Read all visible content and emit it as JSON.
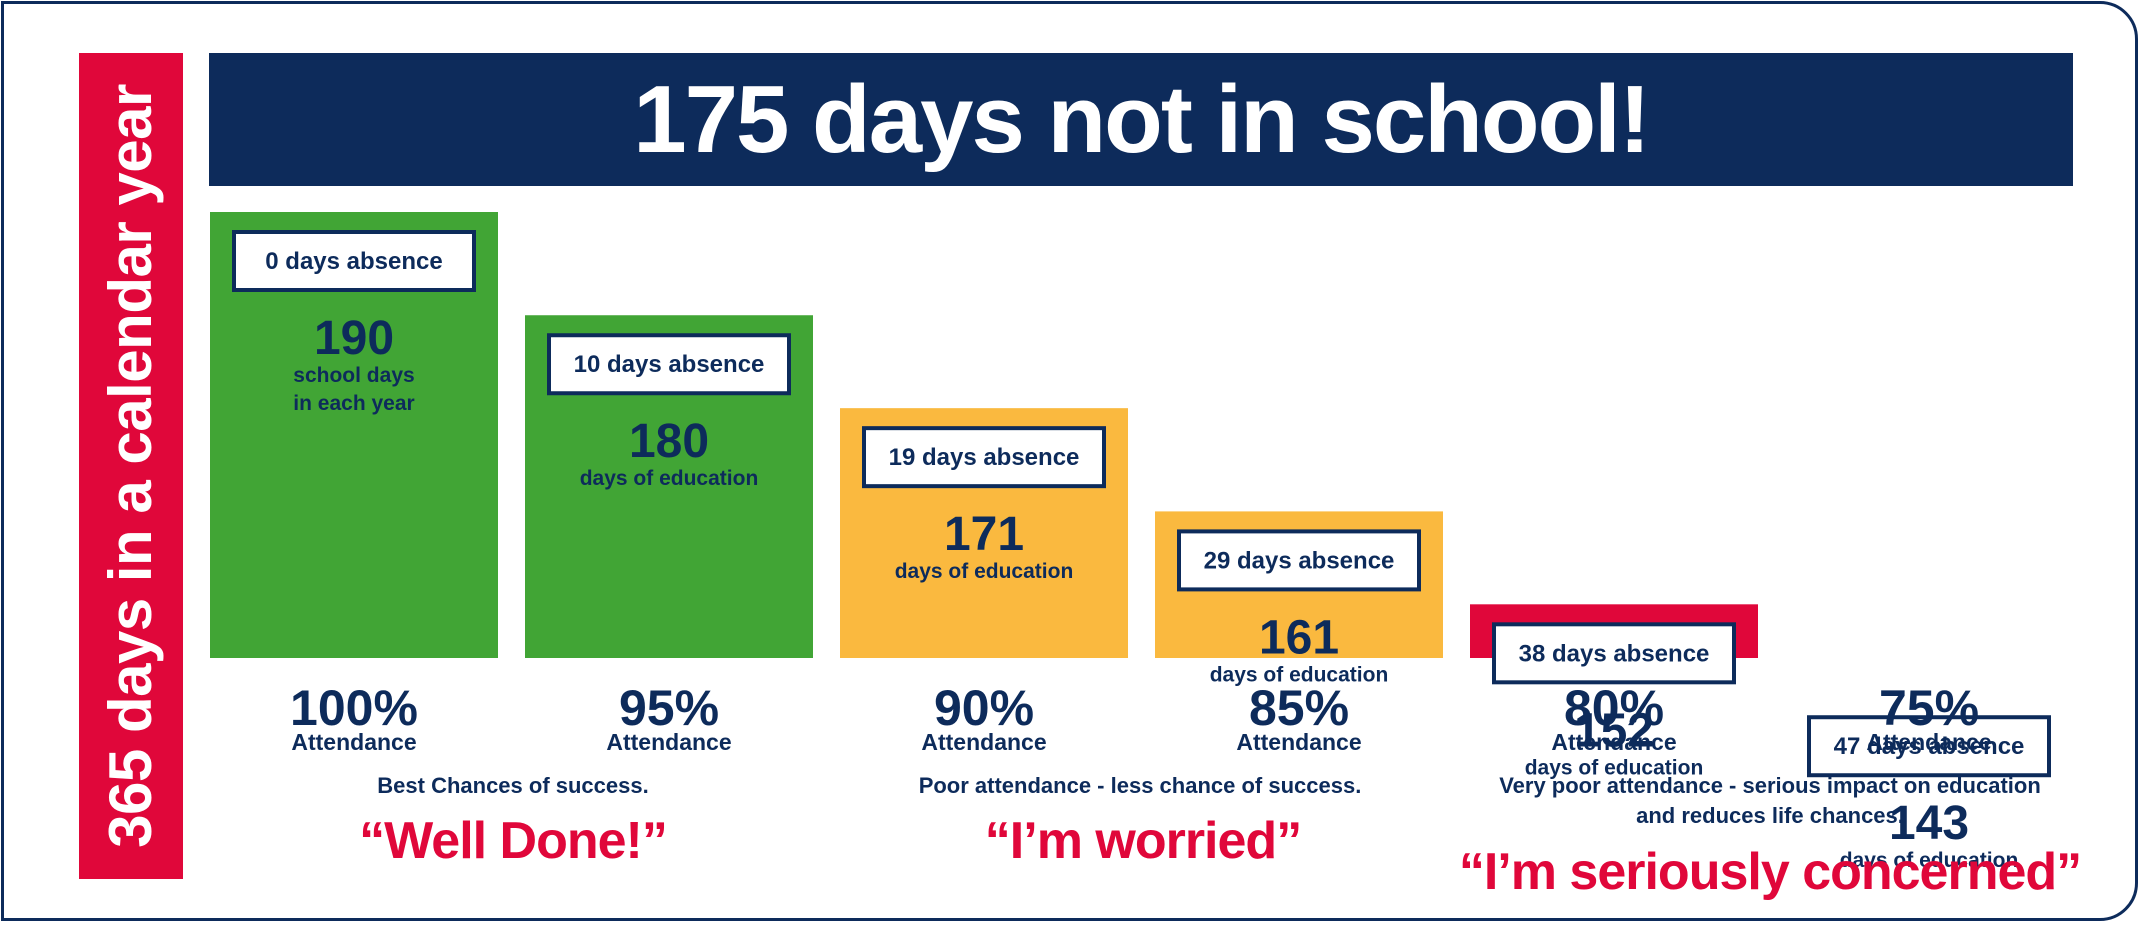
{
  "side_banner": {
    "text": "365 days in a calendar year"
  },
  "header": {
    "title": "175 days not in school!"
  },
  "colors": {
    "navy": "#0d2b5b",
    "green": "#41a535",
    "amber": "#fab93f",
    "red": "#e0073a",
    "white": "#ffffff"
  },
  "chart_data": {
    "type": "bar",
    "title": "175 days not in school!",
    "ylabel": "",
    "xlabel": "",
    "ylim": [
      0,
      190
    ],
    "grid": false,
    "categories": [
      "100%",
      "95%",
      "90%",
      "85%",
      "80%",
      "75%"
    ],
    "bars": [
      {
        "absence": "0 days absence",
        "value": 190,
        "value_label": "190",
        "caption_lines": [
          "school days",
          "in each year"
        ],
        "percent": "100%",
        "attendance": "Attendance",
        "color": "#41a535"
      },
      {
        "absence": "10 days absence",
        "value": 180,
        "value_label": "180",
        "caption_lines": [
          "days of education"
        ],
        "percent": "95%",
        "attendance": "Attendance",
        "color": "#41a535"
      },
      {
        "absence": "19 days absence",
        "value": 171,
        "value_label": "171",
        "caption_lines": [
          "days of education"
        ],
        "percent": "90%",
        "attendance": "Attendance",
        "color": "#fab93f"
      },
      {
        "absence": "29 days absence",
        "value": 161,
        "value_label": "161",
        "caption_lines": [
          "days of education"
        ],
        "percent": "85%",
        "attendance": "Attendance",
        "color": "#fab93f"
      },
      {
        "absence": "38 days absence",
        "value": 152,
        "value_label": "152",
        "caption_lines": [
          "days of education"
        ],
        "percent": "80%",
        "attendance": "Attendance",
        "color": "#e0073a"
      },
      {
        "absence": "47 days absence",
        "value": 143,
        "value_label": "143",
        "caption_lines": [
          "days of education"
        ],
        "percent": "75%",
        "attendance": "Attendance",
        "color": "#e0073a"
      }
    ],
    "groups": [
      {
        "note_lines": [
          "Best Chances of success."
        ],
        "quote": "“Well Done!”"
      },
      {
        "note_lines": [
          "Poor attendance - less chance of success."
        ],
        "quote": "“I’m worried”"
      },
      {
        "note_lines": [
          "Very poor attendance - serious impact on education",
          "and reduces life chances."
        ],
        "quote": "“I’m seriously concerned”"
      }
    ]
  }
}
